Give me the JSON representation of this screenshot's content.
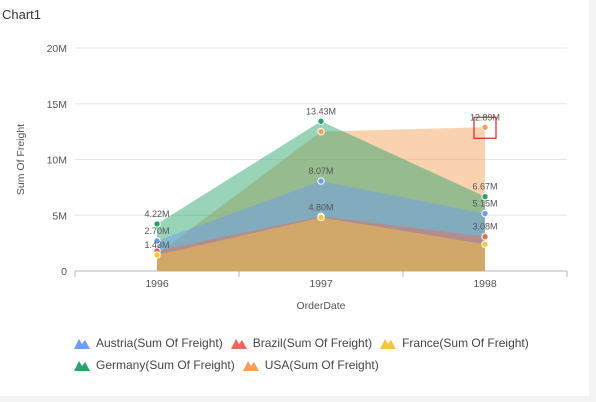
{
  "chart_title": "Chart1",
  "chart_data": {
    "type": "area",
    "title": "Chart1",
    "xlabel": "OrderDate",
    "ylabel": "Sum Of Freight",
    "categories": [
      "1996",
      "1997",
      "1998"
    ],
    "ylim": [
      0,
      20000000
    ],
    "yticks": [
      "0",
      "5M",
      "10M",
      "15M",
      "20M"
    ],
    "grid": true,
    "legend_position": "bottom",
    "series": [
      {
        "name": "Austria(Sum Of Freight)",
        "color": "#6d9df0",
        "values": [
          2700000,
          8070000,
          5150000
        ],
        "labels": [
          "2.70M",
          "8.07M",
          "5.15M"
        ]
      },
      {
        "name": "Brazil(Sum Of Freight)",
        "color": "#e8695c",
        "values": [
          1800000,
          4900000,
          3080000
        ],
        "labels": [
          "",
          "",
          "3.08M"
        ]
      },
      {
        "name": "France(Sum Of Freight)",
        "color": "#f4c542",
        "values": [
          1430000,
          4800000,
          2400000
        ],
        "labels": [
          "1.43M",
          "4.80M",
          ""
        ]
      },
      {
        "name": "Germany(Sum Of Freight)",
        "color": "#29a36a",
        "values": [
          4220000,
          13430000,
          6670000
        ],
        "labels": [
          "4.22M",
          "13.43M",
          "6.67M"
        ]
      },
      {
        "name": "USA(Sum Of Freight)",
        "color": "#f2a05a",
        "values": [
          1500000,
          12500000,
          12890000
        ],
        "labels": [
          "",
          "",
          "12.89M"
        ]
      }
    ]
  }
}
